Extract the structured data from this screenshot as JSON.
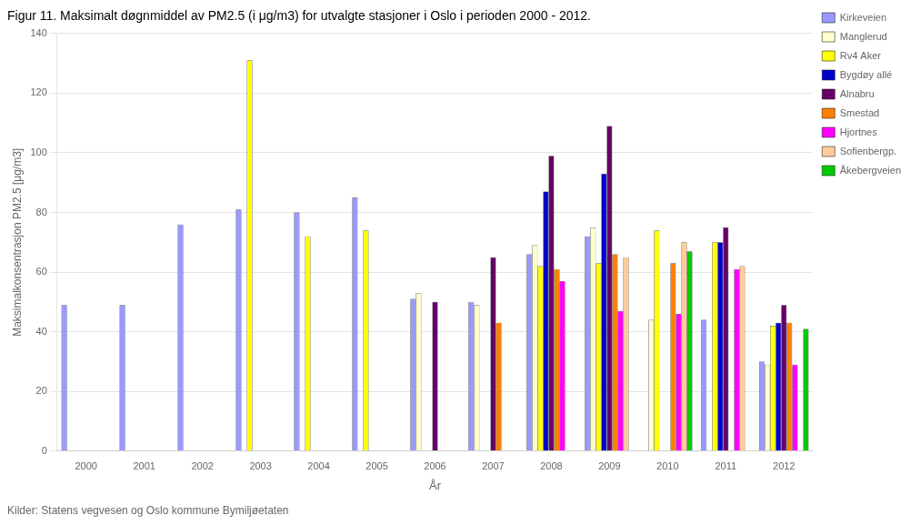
{
  "chart_data": {
    "type": "bar",
    "title": "Figur 11. Maksimalt døgnmiddel av PM2.5 (i μg/m3) for utvalgte stasjoner i Oslo i perioden 2000 - 2012.",
    "x_label": "År",
    "y_label": "Maksimalkonsentrasjon PM2.5 [μg/m3]",
    "annotations": [
      "Kilder: Statens vegvesen og Oslo kommune Bymiljøetaten"
    ],
    "categories": [
      "2000",
      "2001",
      "2002",
      "2003",
      "2004",
      "2005",
      "2006",
      "2007",
      "2008",
      "2009",
      "2010",
      "2011",
      "2012"
    ],
    "series": [
      {
        "name": "Kirkeveien",
        "color": "#9999FF",
        "values": [
          49,
          49,
          76,
          81,
          80,
          85,
          51,
          50,
          66,
          72,
          null,
          44,
          30
        ]
      },
      {
        "name": "Manglerud",
        "color": "#FFFFCC",
        "values": [
          null,
          null,
          null,
          null,
          null,
          null,
          53,
          49,
          69,
          75,
          44,
          null,
          29
        ]
      },
      {
        "name": "Rv4 Aker",
        "color": "#FFFF00",
        "values": [
          null,
          null,
          null,
          131,
          72,
          74,
          null,
          null,
          62,
          63,
          74,
          70,
          42
        ]
      },
      {
        "name": "Bygdøy allé",
        "color": "#0000CC",
        "values": [
          null,
          null,
          null,
          null,
          null,
          null,
          null,
          null,
          87,
          93,
          null,
          70,
          43
        ]
      },
      {
        "name": "Alnabru",
        "color": "#660066",
        "values": [
          null,
          null,
          null,
          null,
          null,
          null,
          50,
          65,
          99,
          109,
          null,
          75,
          49
        ]
      },
      {
        "name": "Smestad",
        "color": "#FF8000",
        "values": [
          null,
          null,
          null,
          null,
          null,
          null,
          null,
          43,
          61,
          66,
          63,
          null,
          43
        ]
      },
      {
        "name": "Hjortnes",
        "color": "#FF00FF",
        "values": [
          null,
          null,
          null,
          null,
          null,
          null,
          null,
          null,
          57,
          47,
          46,
          61,
          29
        ]
      },
      {
        "name": "Sofienbergp.",
        "color": "#FFCC99",
        "values": [
          null,
          null,
          null,
          null,
          null,
          null,
          null,
          null,
          null,
          65,
          70,
          62,
          null
        ]
      },
      {
        "name": "Åkebergveien",
        "color": "#00CC00",
        "values": [
          null,
          null,
          null,
          null,
          null,
          null,
          null,
          null,
          null,
          null,
          67,
          null,
          41
        ]
      }
    ],
    "ylim": [
      0,
      140
    ],
    "yticks": [
      0,
      20,
      40,
      60,
      80,
      100,
      120,
      140
    ],
    "grid": true,
    "legend": "right"
  }
}
